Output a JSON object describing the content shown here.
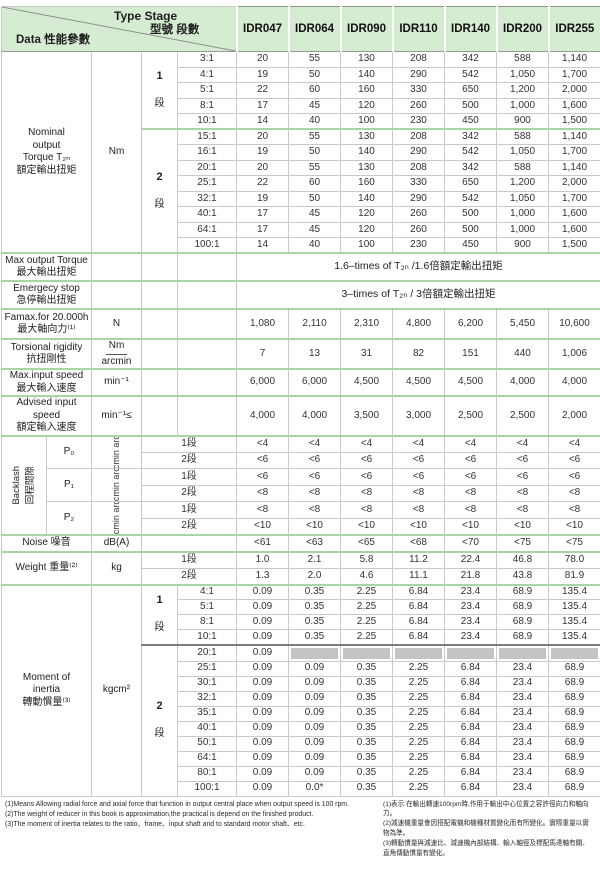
{
  "header": {
    "type_stage_en": "Type Stage",
    "type_stage_cn": "型號 段數",
    "data_label": "Data 性能參數",
    "models": [
      "IDR047",
      "IDR064",
      "IDR090",
      "IDR110",
      "IDR140",
      "IDR200",
      "IDR255"
    ]
  },
  "colors": {
    "header_green": "#d6ecd2",
    "section_line_green": "#a6d7a1",
    "na_bar_gray": "#c4c4c4"
  },
  "torque": {
    "label_lines": [
      "Nominal",
      "output",
      "Torque T₂ₙ",
      "額定輸出扭矩"
    ],
    "unit": "Nm",
    "stage1": {
      "num": "1",
      "duan": "段",
      "rows": [
        {
          "ratio": "3:1",
          "values": [
            "20",
            "55",
            "130",
            "208",
            "342",
            "588",
            "1,140"
          ]
        },
        {
          "ratio": "4:1",
          "values": [
            "19",
            "50",
            "140",
            "290",
            "542",
            "1,050",
            "1,700"
          ]
        },
        {
          "ratio": "5:1",
          "values": [
            "22",
            "60",
            "160",
            "330",
            "650",
            "1,200",
            "2,000"
          ]
        },
        {
          "ratio": "8:1",
          "values": [
            "17",
            "45",
            "120",
            "260",
            "500",
            "1,000",
            "1,600"
          ]
        },
        {
          "ratio": "10:1",
          "values": [
            "14",
            "40",
            "100",
            "230",
            "450",
            "900",
            "1,500"
          ]
        }
      ]
    },
    "stage2": {
      "num": "2",
      "duan": "段",
      "rows": [
        {
          "ratio": "15:1",
          "values": [
            "20",
            "55",
            "130",
            "208",
            "342",
            "588",
            "1,140"
          ]
        },
        {
          "ratio": "16:1",
          "values": [
            "19",
            "50",
            "140",
            "290",
            "542",
            "1,050",
            "1,700"
          ]
        },
        {
          "ratio": "20:1",
          "values": [
            "20",
            "55",
            "130",
            "208",
            "342",
            "588",
            "1,140"
          ]
        },
        {
          "ratio": "25:1",
          "values": [
            "22",
            "60",
            "160",
            "330",
            "650",
            "1,200",
            "2,000"
          ]
        },
        {
          "ratio": "32:1",
          "values": [
            "19",
            "50",
            "140",
            "290",
            "542",
            "1,050",
            "1,700"
          ]
        },
        {
          "ratio": "40:1",
          "values": [
            "17",
            "45",
            "120",
            "260",
            "500",
            "1,000",
            "1,600"
          ]
        },
        {
          "ratio": "64:1",
          "values": [
            "17",
            "45",
            "120",
            "260",
            "500",
            "1,000",
            "1,600"
          ]
        },
        {
          "ratio": "100:1",
          "values": [
            "14",
            "40",
            "100",
            "230",
            "450",
            "900",
            "1,500"
          ]
        }
      ]
    }
  },
  "max_output": {
    "label_en": "Max output Torque",
    "label_cn": "最大輸出扭矩",
    "text": "1.6–times of T₂ₙ /1.6倍額定輸出扭矩"
  },
  "emergency": {
    "label_en": "Emergecy stop",
    "label_cn": "急停輸出扭矩",
    "text": "3–times of T₂ₙ / 3倍額定輸出扭矩"
  },
  "famax": {
    "label_en": "Famax.for 20.000h",
    "label_cn": "最大軸向力⁽¹⁾",
    "unit": "N",
    "values": [
      "1,080",
      "2,110",
      "2,310",
      "4,800",
      "6,200",
      "5,450",
      "10,600"
    ]
  },
  "torsional": {
    "label_en": "Torsional rigidity",
    "label_cn": "抗扭剛性",
    "unit_top": "Nm",
    "unit_bottom": "arcmin",
    "values": [
      "7",
      "13",
      "31",
      "82",
      "151",
      "440",
      "1,006"
    ]
  },
  "max_input": {
    "label_en": "Max.input speed",
    "label_cn": "最大輸入速度",
    "unit": "min⁻¹",
    "values": [
      "6,000",
      "6,000",
      "4,500",
      "4,500",
      "4,500",
      "4,000",
      "4,000"
    ]
  },
  "advised_input": {
    "label_en": "Advised input speed",
    "label_cn": "額定輸入速度",
    "unit": "min⁻¹≤",
    "values": [
      "4,000",
      "4,000",
      "3,500",
      "3,000",
      "2,500",
      "2,500",
      "2,000"
    ]
  },
  "backlash": {
    "label_en": "Backlash",
    "label_cn": "回程間隙",
    "unit": "arcmin arcmin",
    "groups": [
      {
        "name": "P₀",
        "rows": [
          {
            "stage": "1段",
            "values": [
              "<4",
              "<4",
              "<4",
              "<4",
              "<4",
              "<4",
              "<4"
            ]
          },
          {
            "stage": "2段",
            "values": [
              "<6",
              "<6",
              "<6",
              "<6",
              "<6",
              "<6",
              "<6"
            ]
          }
        ]
      },
      {
        "name": "P₁",
        "rows": [
          {
            "stage": "1段",
            "values": [
              "<6",
              "<6",
              "<6",
              "<6",
              "<6",
              "<6",
              "<6"
            ]
          },
          {
            "stage": "2段",
            "values": [
              "<8",
              "<8",
              "<8",
              "<8",
              "<8",
              "<8",
              "<8"
            ]
          }
        ]
      },
      {
        "name": "P₂",
        "rows": [
          {
            "stage": "1段",
            "values": [
              "<8",
              "<8",
              "<8",
              "<8",
              "<8",
              "<8",
              "<8"
            ]
          },
          {
            "stage": "2段",
            "values": [
              "<10",
              "<10",
              "<10",
              "<10",
              "<10",
              "<10",
              "<10"
            ]
          }
        ]
      }
    ]
  },
  "noise": {
    "label": "Noise 噪音",
    "unit": "dB(A)",
    "values": [
      "<61",
      "<63",
      "<65",
      "<68",
      "<70",
      "<75",
      "<75"
    ]
  },
  "weight": {
    "label": "Weight 重量⁽²⁾",
    "unit": "kg",
    "rows": [
      {
        "stage": "1段",
        "values": [
          "1.0",
          "2.1",
          "5.8",
          "11.2",
          "22.4",
          "46.8",
          "78.0"
        ]
      },
      {
        "stage": "2段",
        "values": [
          "1.3",
          "2.0",
          "4.6",
          "11.1",
          "21.8",
          "43.8",
          "81.9"
        ]
      }
    ]
  },
  "inertia": {
    "label_lines": [
      "Moment of",
      "inertia",
      "轉動慣量⁽³⁾"
    ],
    "unit": "kgcm²",
    "stage1": {
      "num": "1",
      "duan": "段",
      "rows": [
        {
          "ratio": "4:1",
          "values": [
            "0.09",
            "0.35",
            "2.25",
            "6.84",
            "23.4",
            "68.9",
            "135.4"
          ]
        },
        {
          "ratio": "5:1",
          "values": [
            "0.09",
            "0.35",
            "2.25",
            "6.84",
            "23.4",
            "68.9",
            "135.4"
          ]
        },
        {
          "ratio": "8:1",
          "values": [
            "0.09",
            "0.35",
            "2.25",
            "6.84",
            "23.4",
            "68.9",
            "135.4"
          ]
        },
        {
          "ratio": "10:1",
          "values": [
            "0.09",
            "0.35",
            "2.25",
            "6.84",
            "23.4",
            "68.9",
            "135.4"
          ]
        }
      ]
    },
    "stage2": {
      "num": "2",
      "duan": "段",
      "rows": [
        {
          "ratio": "20:1",
          "values": [
            "0.09"
          ],
          "na": 6
        },
        {
          "ratio": "25:1",
          "values": [
            "0.09",
            "0.09",
            "0.35",
            "2.25",
            "6.84",
            "23.4",
            "68.9"
          ]
        },
        {
          "ratio": "30:1",
          "values": [
            "0.09",
            "0.09",
            "0.35",
            "2.25",
            "6.84",
            "23.4",
            "68.9"
          ]
        },
        {
          "ratio": "32:1",
          "values": [
            "0.09",
            "0.09",
            "0.35",
            "2.25",
            "6.84",
            "23.4",
            "68.9"
          ]
        },
        {
          "ratio": "35:1",
          "values": [
            "0.09",
            "0.09",
            "0.35",
            "2.25",
            "6.84",
            "23.4",
            "68.9"
          ]
        },
        {
          "ratio": "40:1",
          "values": [
            "0.09",
            "0.09",
            "0.35",
            "2.25",
            "6.84",
            "23.4",
            "68.9"
          ]
        },
        {
          "ratio": "50:1",
          "values": [
            "0.09",
            "0.09",
            "0.35",
            "2.25",
            "6.84",
            "23.4",
            "68.9"
          ]
        },
        {
          "ratio": "64:1",
          "values": [
            "0.09",
            "0.09",
            "0.35",
            "2.25",
            "6.84",
            "23.4",
            "68.9"
          ]
        },
        {
          "ratio": "80:1",
          "values": [
            "0.09",
            "0.09",
            "0.35",
            "2.25",
            "6.84",
            "23.4",
            "68.9"
          ]
        },
        {
          "ratio": "100:1",
          "values": [
            "0.09",
            "0.0*",
            "0.35",
            "2.25",
            "6.84",
            "23.4",
            "68.9"
          ]
        }
      ]
    }
  },
  "footnotes": {
    "en": [
      "(1)Means Allowing radial force and axial force that function in output central place when output speed is 100 rpm.",
      "(2)The weight of reducer in this book is approximation,the practical is depend on the finished product.",
      "(3)The moment of inertia relates to the ratio、frame、input shaft and to standard motor shaft、etc."
    ],
    "cn": [
      "(1)表示:在輸出轉速100rpm時,作用于輸出中心位置之容許徑向力和軸向力。",
      "(2)減速機重量會因搭配電機和機種材質變化而有所變化。實際重量以實物為準。",
      "(3)轉動慣量與減速比、減速機內部結構、輸入軸徑及標配馬達軸有關、直角傳動慣量有變化。"
    ]
  }
}
